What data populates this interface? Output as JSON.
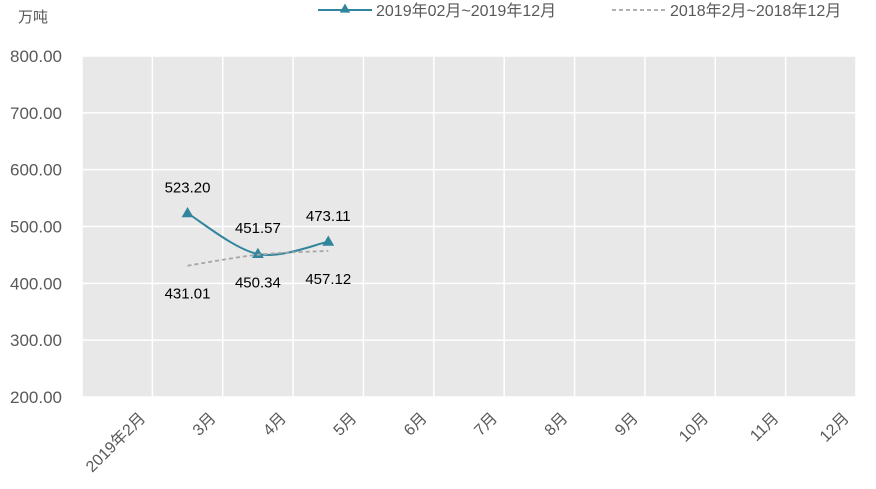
{
  "chart_data": {
    "type": "line",
    "unit_label": "万吨",
    "categories": [
      "2019年2月",
      "3月",
      "4月",
      "5月",
      "6月",
      "7月",
      "8月",
      "9月",
      "10月",
      "11月",
      "12月"
    ],
    "series": [
      {
        "name": "2019年02月~2019年12月",
        "values": [
          null,
          523.2,
          451.57,
          473.11,
          null,
          null,
          null,
          null,
          null,
          null,
          null
        ],
        "labels": [
          "",
          "523.20",
          "451.57",
          "473.11",
          "",
          "",
          "",
          "",
          "",
          "",
          ""
        ],
        "color": "#31859C",
        "style": "solid",
        "marker": "triangle"
      },
      {
        "name": "2018年2月~2018年12月",
        "values": [
          null,
          431.01,
          450.34,
          457.12,
          null,
          null,
          null,
          null,
          null,
          null,
          null
        ],
        "labels": [
          "",
          "431.01",
          "450.34",
          "457.12",
          "",
          "",
          "",
          "",
          "",
          "",
          ""
        ],
        "color": "#A6A6A6",
        "style": "dashed",
        "marker": "none"
      }
    ],
    "y_ticks": [
      "800.00",
      "700.00",
      "600.00",
      "500.00",
      "400.00",
      "300.00",
      "200.00"
    ],
    "ylim": [
      200,
      800
    ],
    "grid": true,
    "legend_position": "top-right",
    "plot_background": "#E8E8E8",
    "gridline_color": "#FFFFFF"
  }
}
